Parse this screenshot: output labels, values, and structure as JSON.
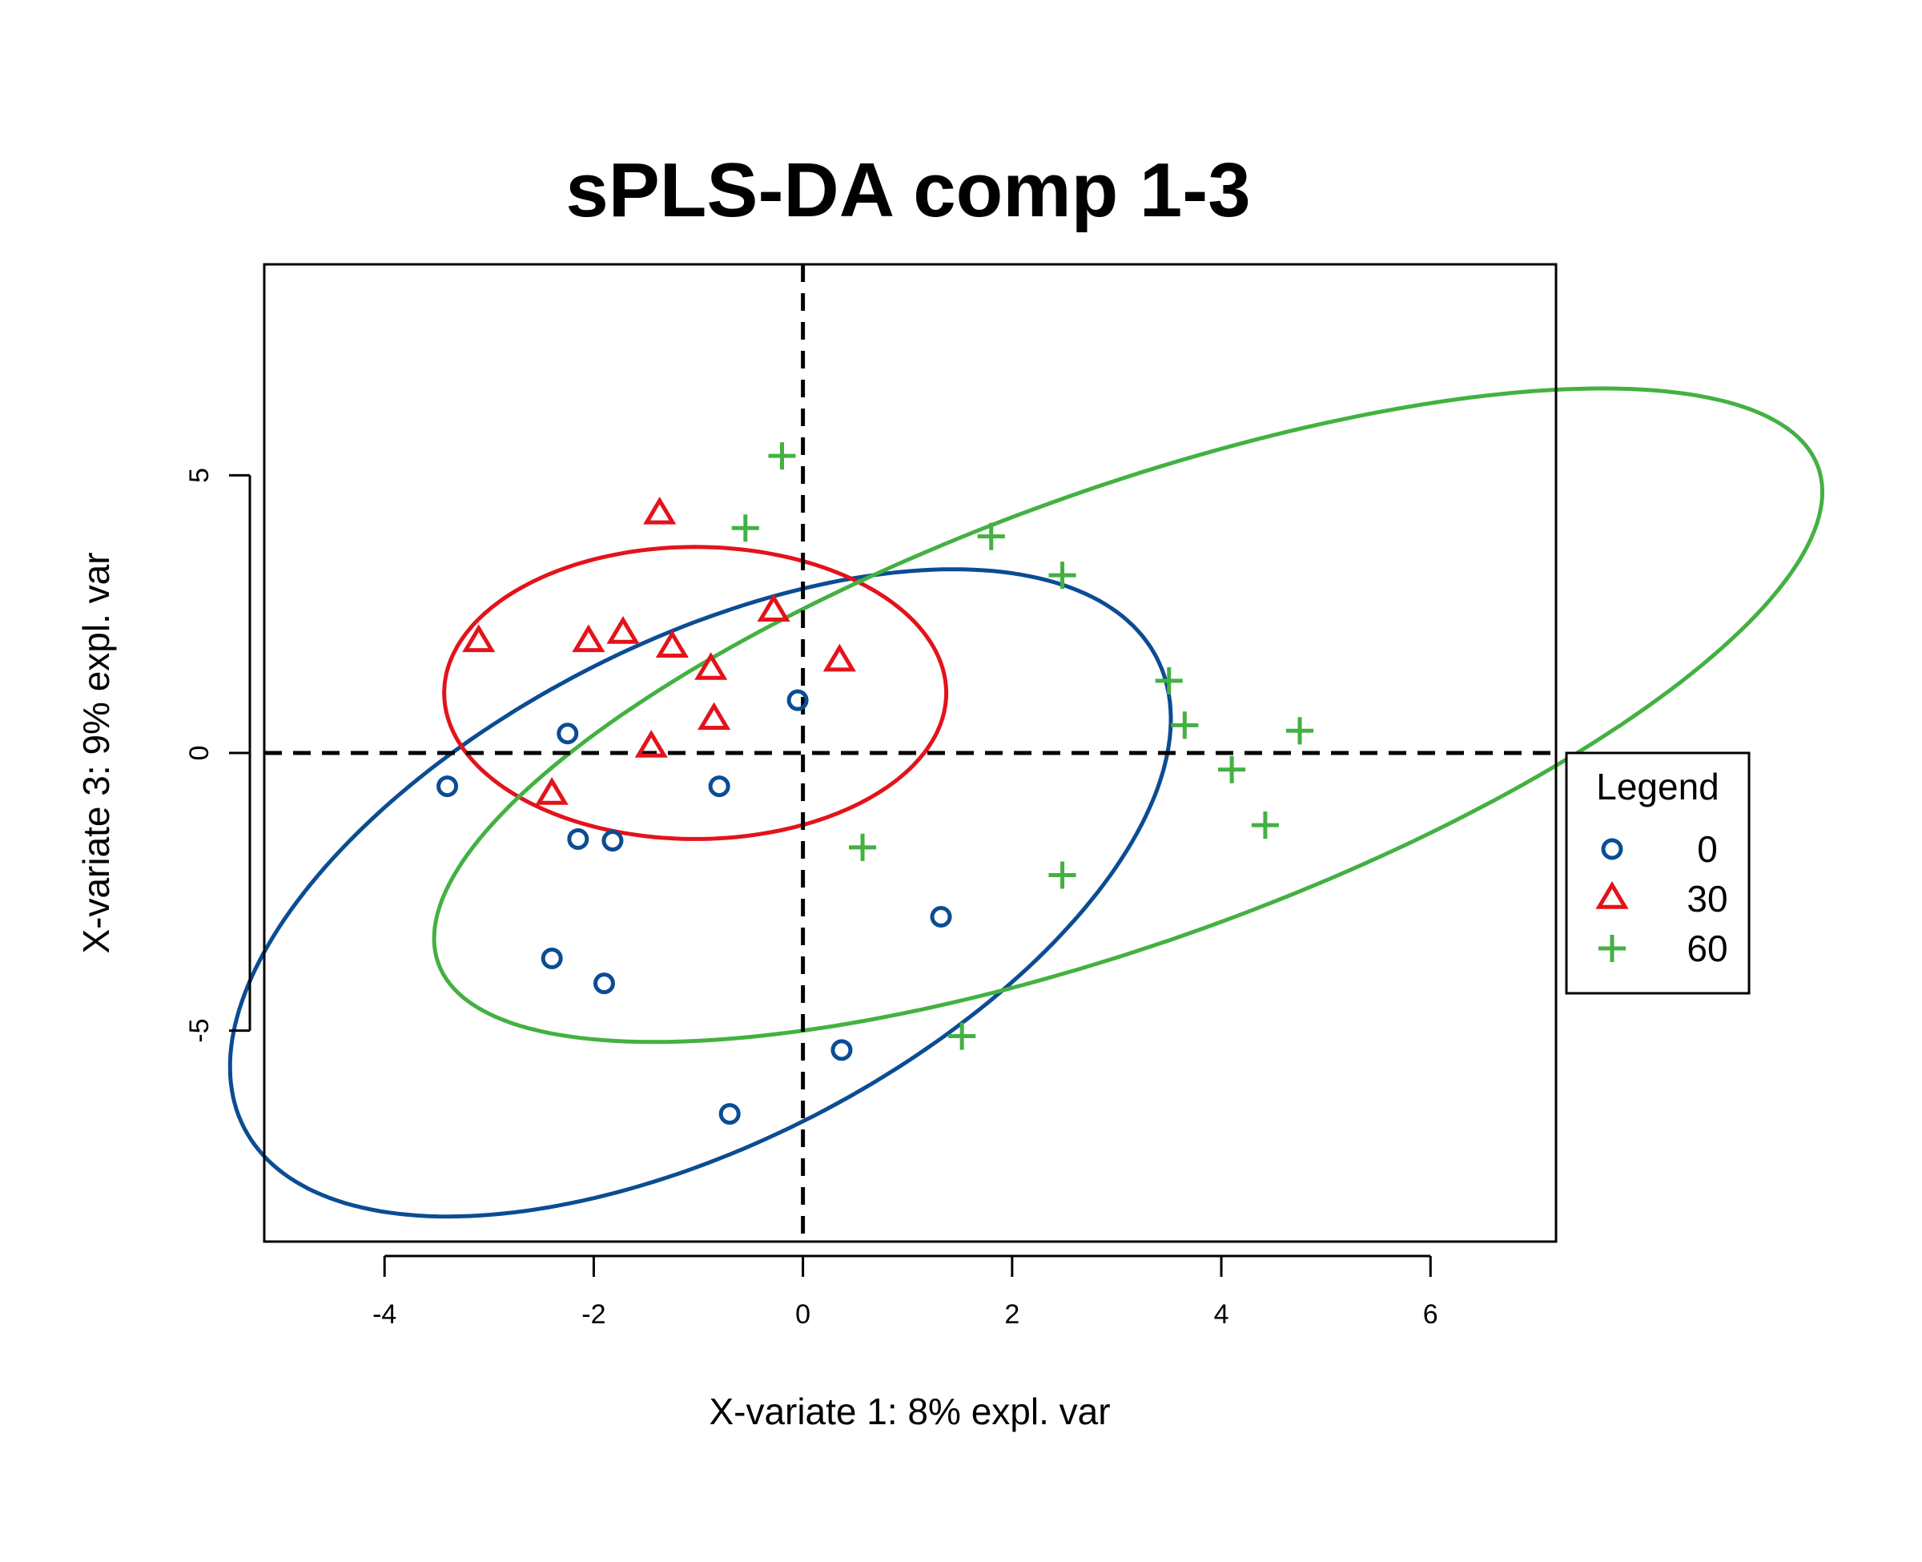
{
  "chart_data": {
    "type": "scatter",
    "title": "sPLS-DA comp 1-3",
    "xlabel": "X-variate 1: 8% expl. var",
    "ylabel": "X-variate 3: 9% expl. var",
    "xlim": [
      -5.15,
      7.2
    ],
    "ylim": [
      -8.8,
      8.8
    ],
    "xticks": [
      -4,
      -2,
      0,
      2,
      4,
      6
    ],
    "yticks": [
      -5,
      0,
      5
    ],
    "reference_lines": {
      "x": 0,
      "y": 0,
      "style": "dashed"
    },
    "legend": {
      "title": "Legend",
      "position": "right"
    },
    "series": [
      {
        "name": "0",
        "marker": "circle",
        "color": "#0B4C93",
        "points": [
          [
            -3.4,
            -0.6
          ],
          [
            -2.25,
            0.35
          ],
          [
            -0.05,
            0.95
          ],
          [
            -0.8,
            -0.6
          ],
          [
            -2.15,
            -1.55
          ],
          [
            -1.82,
            -1.58
          ],
          [
            1.32,
            -2.95
          ],
          [
            -2.4,
            -3.7
          ],
          [
            -1.9,
            -4.15
          ],
          [
            0.37,
            -5.35
          ],
          [
            -0.7,
            -6.5
          ]
        ],
        "ellipse": {
          "cx": -0.98,
          "cy": -2.52,
          "rx": 3.38,
          "ry": 6.54,
          "rotation_deg": -32
        }
      },
      {
        "name": "30",
        "marker": "triangle",
        "color": "#E3131B",
        "points": [
          [
            -1.37,
            4.3
          ],
          [
            -0.28,
            2.55
          ],
          [
            -3.1,
            2.0
          ],
          [
            -2.05,
            2.0
          ],
          [
            -1.72,
            2.15
          ],
          [
            -1.25,
            1.9
          ],
          [
            -0.88,
            1.5
          ],
          [
            0.35,
            1.65
          ],
          [
            -0.85,
            0.6
          ],
          [
            -1.45,
            0.1
          ],
          [
            -2.4,
            -0.75
          ]
        ],
        "ellipse": {
          "cx": -1.03,
          "cy": 1.08,
          "rx": 2.4,
          "ry": 2.63,
          "rotation_deg": 0
        }
      },
      {
        "name": "60",
        "marker": "plus",
        "color": "#43B142",
        "points": [
          [
            -0.2,
            5.35
          ],
          [
            -0.55,
            4.05
          ],
          [
            1.8,
            3.9
          ],
          [
            2.48,
            3.2
          ],
          [
            3.5,
            1.3
          ],
          [
            3.65,
            0.5
          ],
          [
            4.75,
            0.4
          ],
          [
            4.1,
            -0.3
          ],
          [
            4.42,
            -1.3
          ],
          [
            0.57,
            -1.7
          ],
          [
            2.48,
            -2.2
          ],
          [
            1.52,
            -5.1
          ]
        ],
        "ellipse": {
          "cx": 3.11,
          "cy": 0.68,
          "rx": 3.5,
          "ry": 8.15,
          "rotation_deg": -50
        }
      }
    ]
  }
}
